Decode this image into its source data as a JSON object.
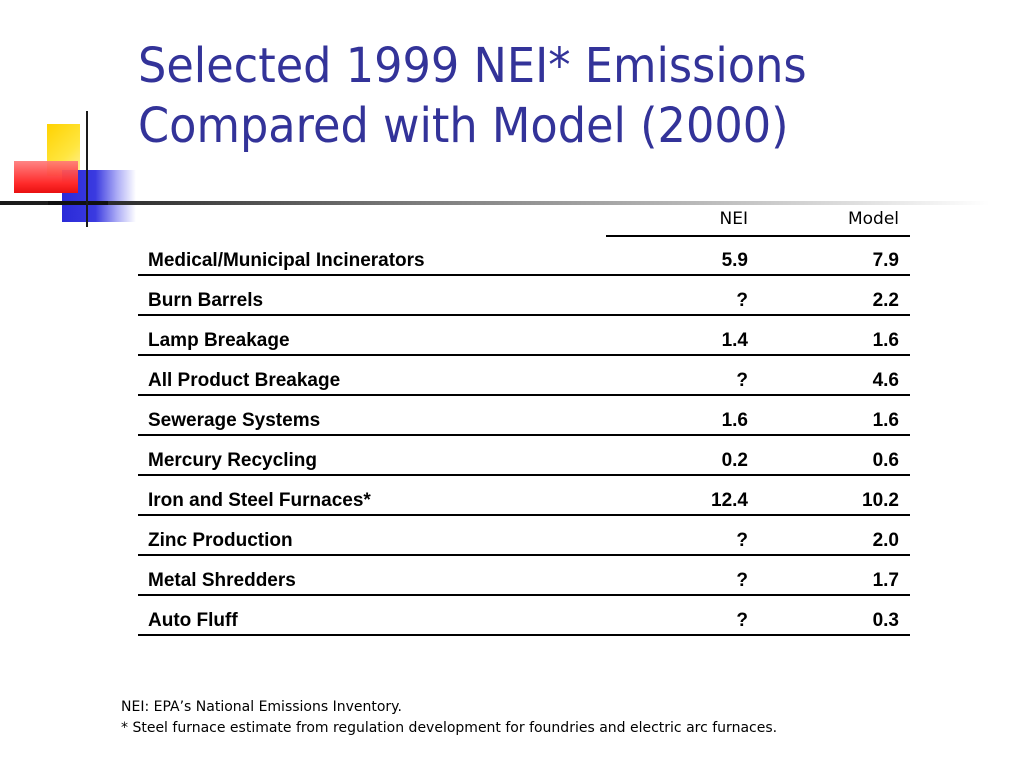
{
  "slide": {
    "title_line1": "Selected 1999 NEI* Emissions",
    "title_line2": "Compared with Model (2000)"
  },
  "colors": {
    "title": "#333399",
    "deco_yellow": "#ffd200",
    "deco_blue": "#2a2ad8",
    "deco_red": "#ff2a2a"
  },
  "table": {
    "headers": {
      "nei": "NEI",
      "model": "Model"
    },
    "rows": [
      {
        "name": "Medical/Municipal Incinerators",
        "nei": "5.9",
        "model": "7.9"
      },
      {
        "name": "Burn Barrels",
        "nei": "?",
        "model": "2.2"
      },
      {
        "name": "Lamp Breakage",
        "nei": "1.4",
        "model": "1.6"
      },
      {
        "name": "All Product Breakage",
        "nei": "?",
        "model": "4.6"
      },
      {
        "name": "Sewerage Systems",
        "nei": "1.6",
        "model": "1.6"
      },
      {
        "name": "Mercury Recycling",
        "nei": "0.2",
        "model": "0.6"
      },
      {
        "name": "Iron and Steel Furnaces*",
        "nei": "12.4",
        "model": "10.2"
      },
      {
        "name": "Zinc Production",
        "nei": "?",
        "model": "2.0"
      },
      {
        "name": "Metal Shredders",
        "nei": "?",
        "model": "1.7"
      },
      {
        "name": "Auto Fluff",
        "nei": "?",
        "model": "0.3"
      }
    ]
  },
  "notes": {
    "line1": "NEI: EPA’s National Emissions Inventory.",
    "line2": "* Steel furnace estimate from regulation development for foundries and electric arc furnaces."
  }
}
